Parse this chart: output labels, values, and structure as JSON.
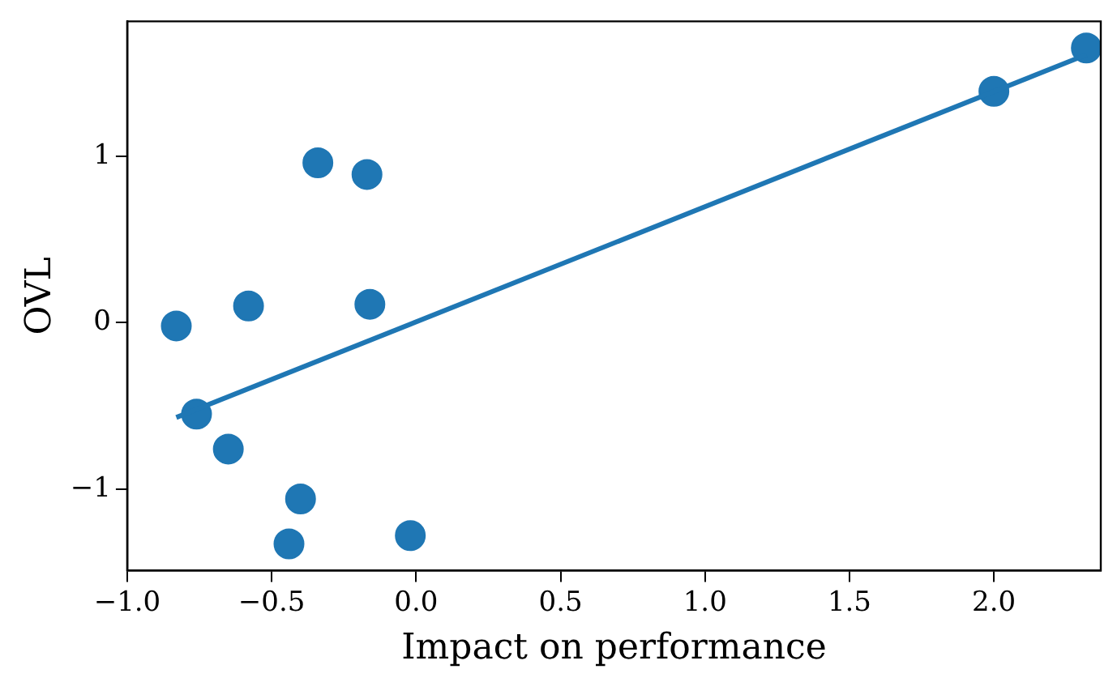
{
  "chart_data": {
    "type": "scatter",
    "xlabel": "Impact on performance",
    "ylabel": "OVL",
    "xlim": [
      -1.0,
      2.37
    ],
    "ylim": [
      -1.49,
      1.81
    ],
    "xticks": [
      {
        "value": -1.0,
        "label": "−1.0"
      },
      {
        "value": -0.5,
        "label": "−0.5"
      },
      {
        "value": 0,
        "label": "0.0"
      },
      {
        "value": 0.5,
        "label": "0.5"
      },
      {
        "value": 1.0,
        "label": "1.0"
      },
      {
        "value": 1.5,
        "label": "1.5"
      },
      {
        "value": 2.0,
        "label": "2.0"
      }
    ],
    "yticks": [
      {
        "value": -1,
        "label": "−1"
      },
      0,
      1
    ],
    "grid": false,
    "legend": false,
    "series": [
      {
        "marker": "circle",
        "color": "#1f77b4",
        "x": [
          -0.83,
          -0.76,
          -0.58,
          -0.65,
          -0.34,
          -0.17,
          -0.16,
          -0.4,
          -0.44,
          -0.02,
          2.0,
          2.32
        ],
        "values": [
          -0.02,
          -0.55,
          0.1,
          -0.76,
          0.96,
          0.89,
          0.11,
          -1.06,
          -1.33,
          -1.28,
          1.39,
          1.65
        ]
      },
      {
        "type": "line",
        "marker": "none",
        "color": "#1f77b4",
        "x": [
          -0.83,
          2.32
        ],
        "values": [
          -0.57,
          1.61
        ]
      }
    ]
  }
}
